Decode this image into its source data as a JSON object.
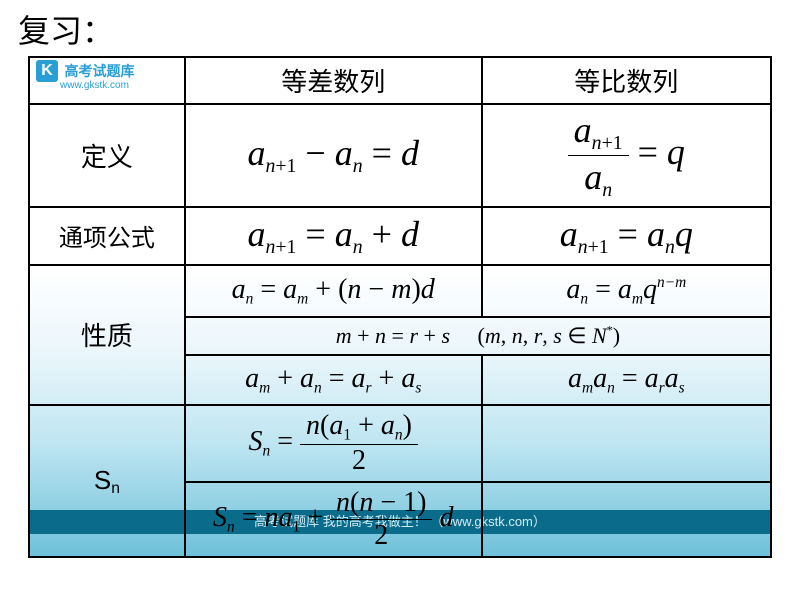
{
  "title": "复习：",
  "logo": {
    "letter": "K",
    "cn": "高考试题库",
    "url": "www.gkstk.com"
  },
  "footer": "高考试题库  我的高考我做主！  （www.gkstk.com）",
  "headers": {
    "col1": "等差数列",
    "col2": "等比数列"
  },
  "rowlabels": {
    "definition": "定义",
    "general_term": "通项公式",
    "property": "性质",
    "sn": "Sn"
  },
  "colors": {
    "border": "#000000",
    "logo_blue": "#2a9fd6",
    "footer_bg": "#0a6b8a",
    "footer_text": "#d0eef8",
    "grad_top": "#ffffff",
    "grad_bottom": "#6ec1d9"
  },
  "fonts": {
    "title_size_pt": 24,
    "cn_size_pt": 20,
    "math_big_pt": 28,
    "math_mid_pt": 22,
    "math_small_pt": 17
  }
}
